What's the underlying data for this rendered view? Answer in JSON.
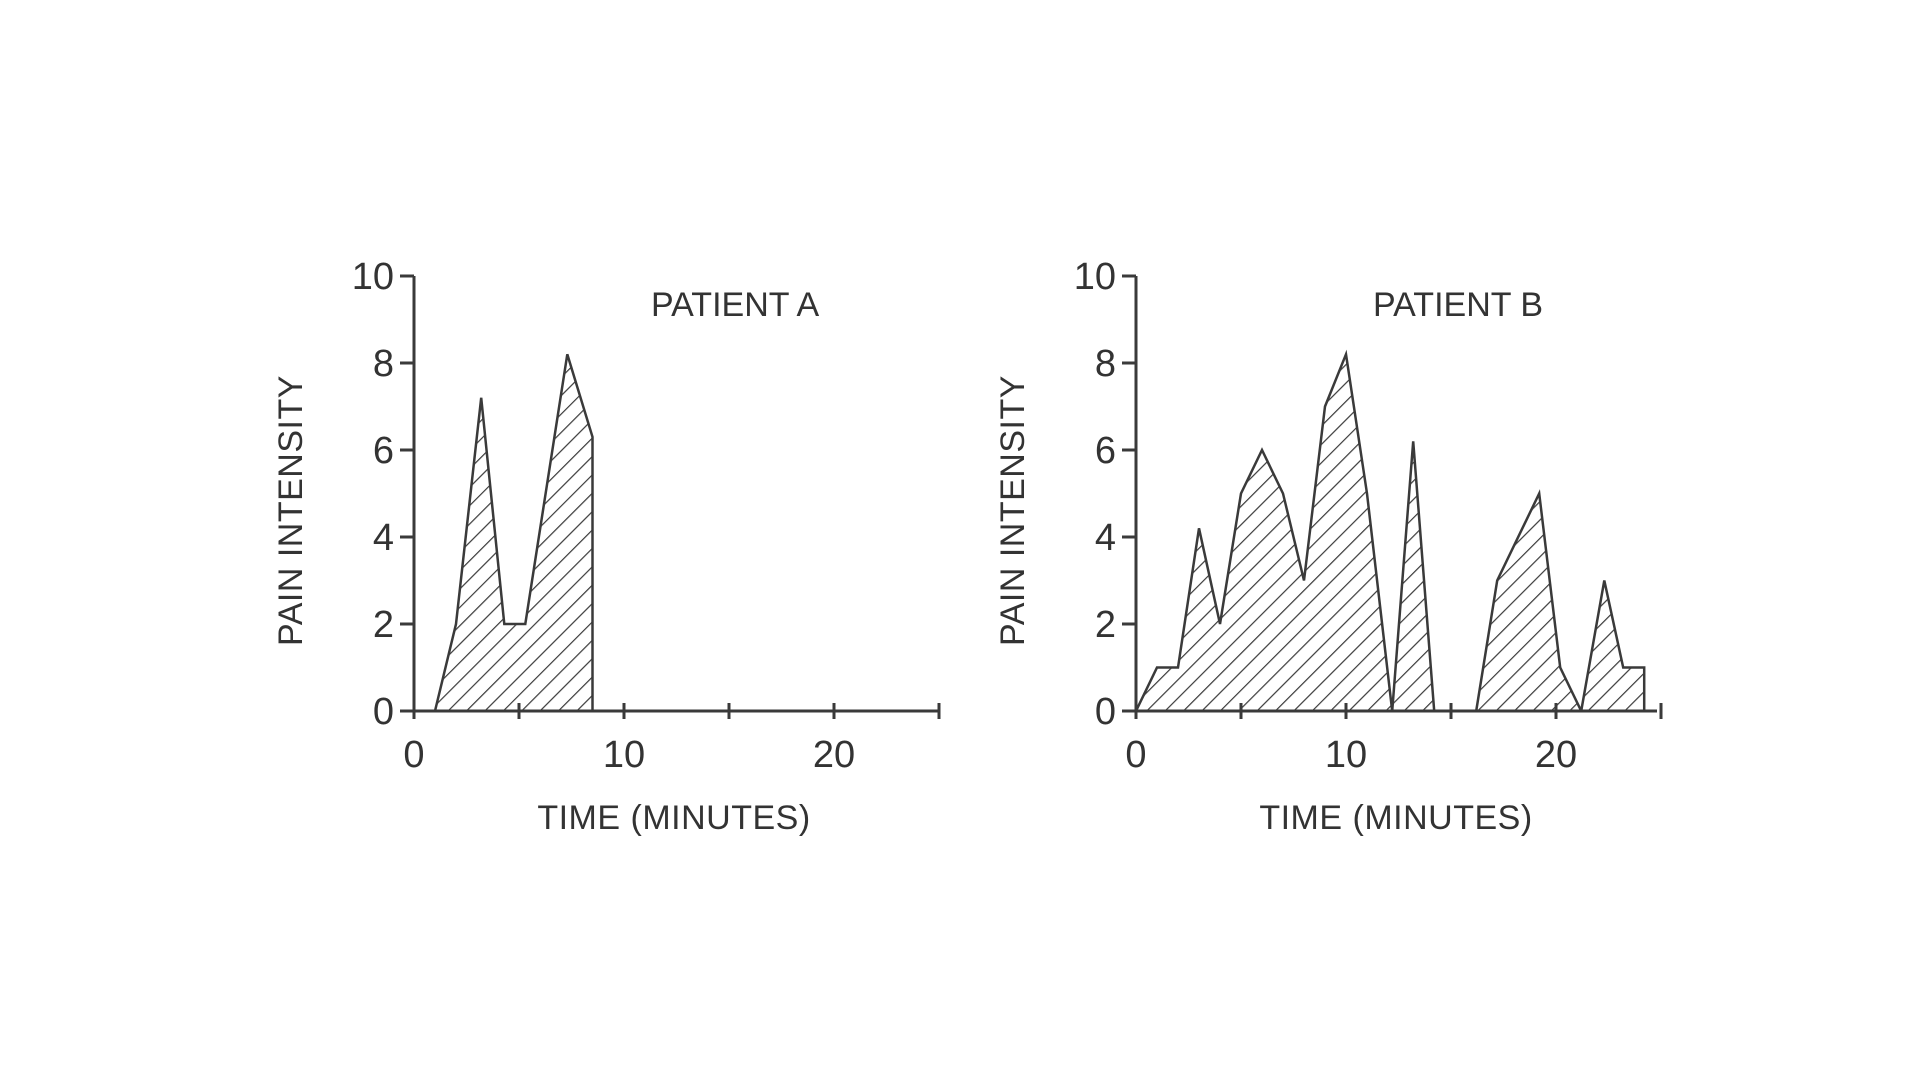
{
  "chart_data": [
    {
      "type": "area",
      "title": "PATIENT A",
      "xlabel": "TIME (MINUTES)",
      "ylabel": "PAIN INTENSITY",
      "xlim": [
        0,
        25
      ],
      "ylim": [
        0,
        10
      ],
      "xticks": [
        0,
        10,
        20
      ],
      "yticks": [
        0,
        2,
        4,
        6,
        8,
        10
      ],
      "grid": false,
      "fill": "hatched",
      "segments": [
        {
          "x": [
            1,
            2,
            3.2,
            4.3,
            5.3,
            7.3,
            8.5,
            8.5
          ],
          "y": [
            0,
            2,
            7.2,
            2,
            2,
            8.2,
            6.3,
            0
          ]
        }
      ]
    },
    {
      "type": "area",
      "title": "PATIENT B",
      "xlabel": "TIME (MINUTES)",
      "ylabel": "PAIN INTENSITY",
      "xlim": [
        0,
        25
      ],
      "ylim": [
        0,
        10
      ],
      "xticks": [
        0,
        10,
        20
      ],
      "yticks": [
        0,
        2,
        4,
        6,
        8,
        10
      ],
      "grid": false,
      "fill": "hatched",
      "segments": [
        {
          "x": [
            0,
            1,
            2,
            3,
            4,
            5,
            6,
            7,
            8,
            9,
            10,
            11,
            12.2
          ],
          "y": [
            0,
            1,
            1,
            4.2,
            2,
            5,
            6,
            5,
            3,
            7,
            8.2,
            5,
            0
          ]
        },
        {
          "x": [
            12.2,
            13.2,
            14.2
          ],
          "y": [
            0,
            6.2,
            0
          ]
        },
        {
          "x": [
            16.2,
            17.2,
            19.2,
            20.2,
            21.2
          ],
          "y": [
            0,
            3,
            5,
            1,
            0
          ]
        },
        {
          "x": [
            21.2,
            22.3,
            23.2,
            24.2,
            24.2
          ],
          "y": [
            0,
            3,
            1,
            1,
            0
          ]
        }
      ]
    }
  ],
  "colors": {
    "ink": "#3a3a3a",
    "background": "#ffffff"
  }
}
